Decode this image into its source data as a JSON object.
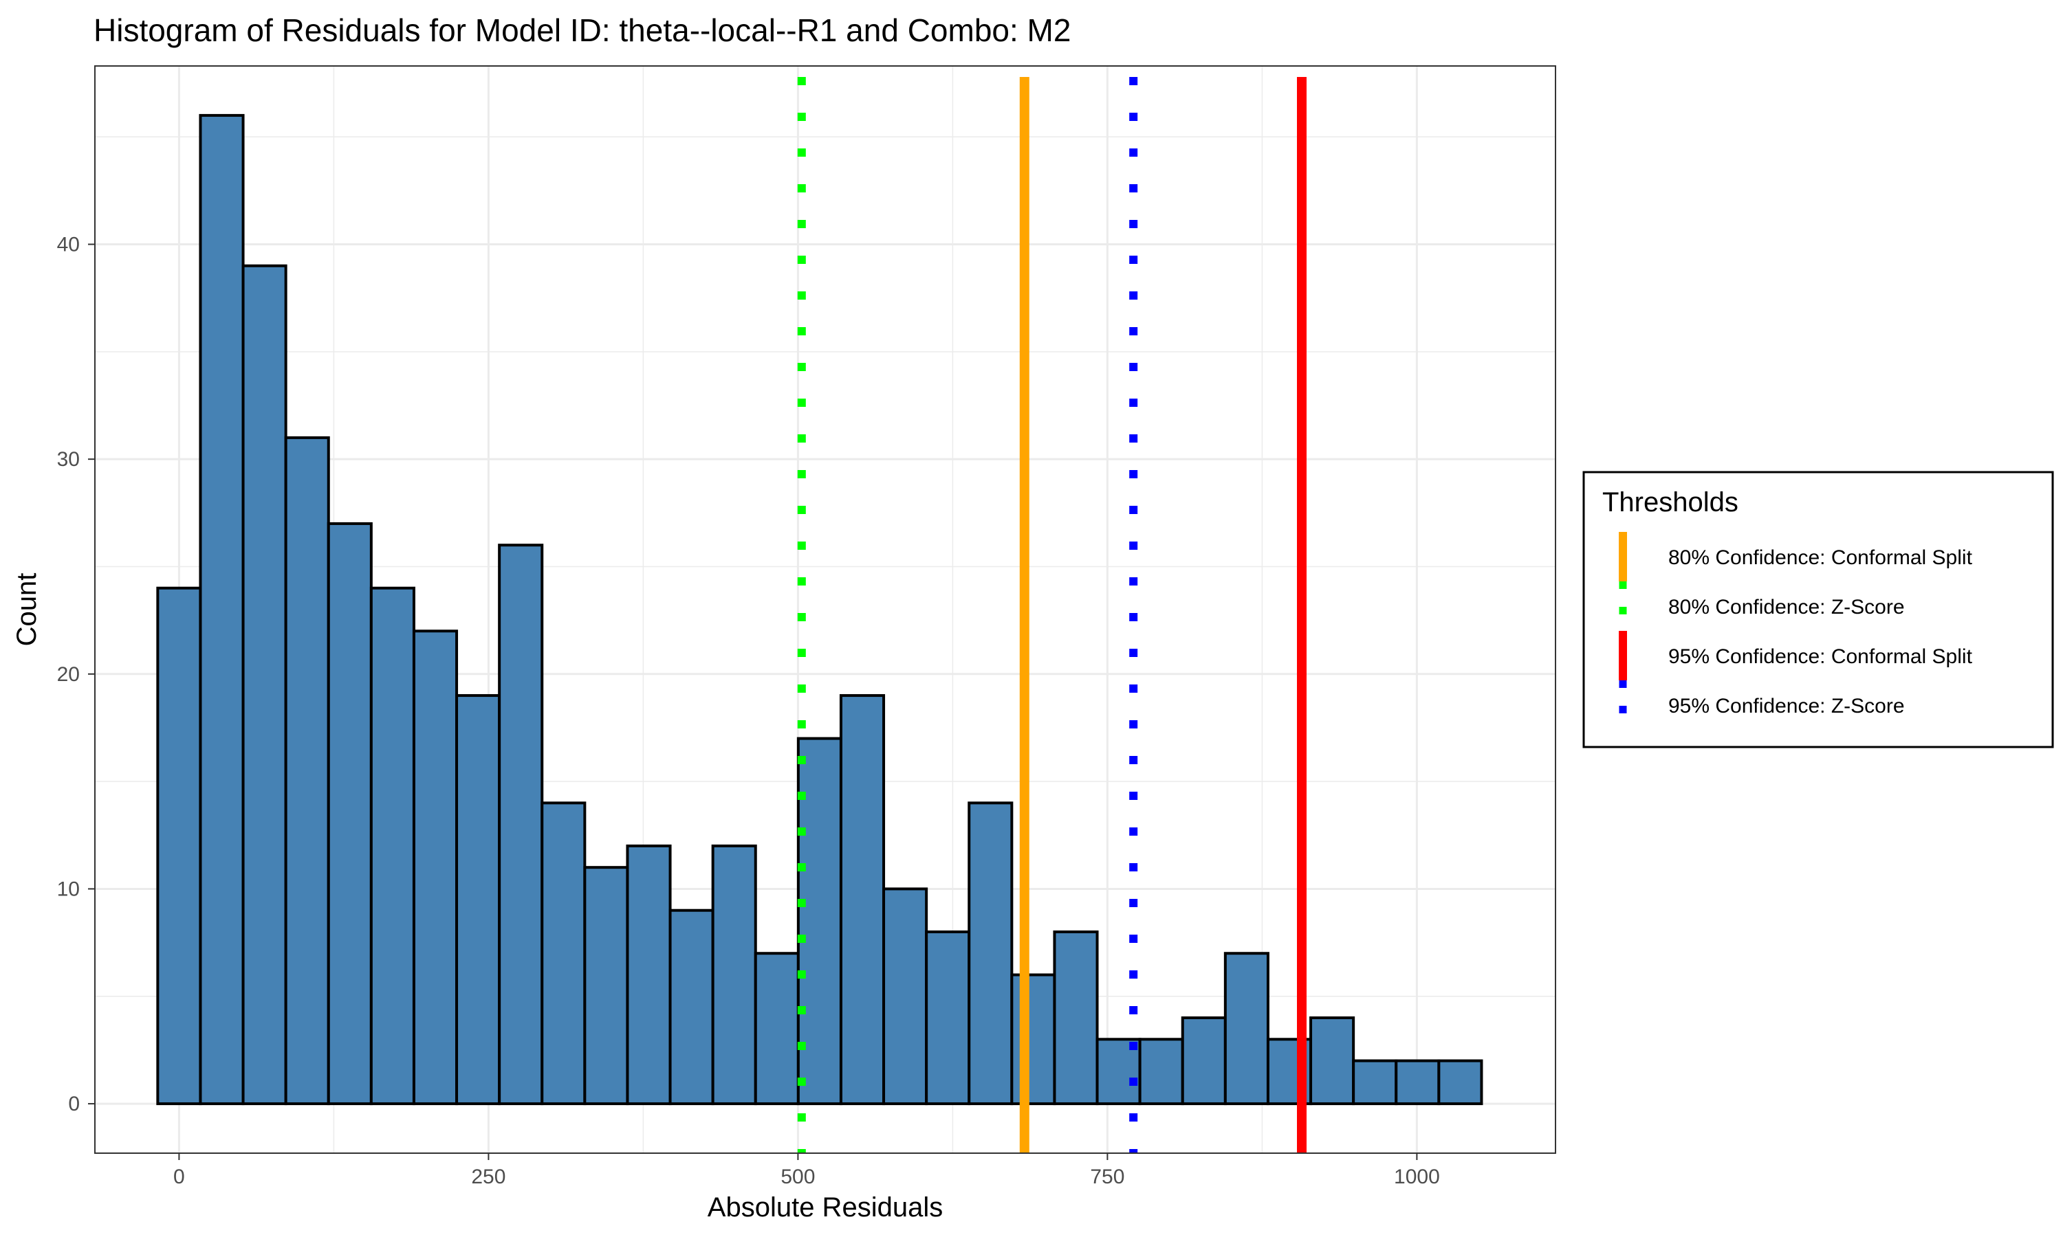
{
  "chart_data": {
    "type": "bar",
    "subtype": "histogram",
    "title": "Histogram of Residuals for Model ID: theta--local--R1 and Combo: M2",
    "xlabel": "Absolute Residuals",
    "ylabel": "Count",
    "xlim": [
      -68,
      1112
    ],
    "ylim": [
      -2.3,
      48.3
    ],
    "x_ticks": [
      0,
      250,
      500,
      750,
      1000
    ],
    "y_ticks": [
      0,
      10,
      20,
      30,
      40
    ],
    "grid": true,
    "bin_width": 34.5,
    "bin_start": -17.25,
    "counts": [
      24,
      46,
      39,
      31,
      27,
      24,
      22,
      19,
      26,
      14,
      11,
      12,
      9,
      12,
      7,
      17,
      19,
      10,
      8,
      14,
      6,
      8,
      3,
      3,
      4,
      7,
      3,
      4,
      2,
      2,
      2
    ],
    "bar_color": "#4682B4",
    "bar_edge_color": "#000000",
    "thresholds": [
      {
        "label": "80% Confidence: Conformal Split",
        "x": 683,
        "color": "#FFA500",
        "linetype": "solid"
      },
      {
        "label": "80% Confidence: Z-Score",
        "x": 503,
        "color": "#00FF00",
        "linetype": "dotted"
      },
      {
        "label": "95% Confidence: Conformal Split",
        "x": 907,
        "color": "#FF0000",
        "linetype": "solid"
      },
      {
        "label": "95% Confidence: Z-Score",
        "x": 771,
        "color": "#0000FF",
        "linetype": "dotted"
      }
    ],
    "legend": {
      "title": "Thresholds",
      "position": "right"
    }
  }
}
